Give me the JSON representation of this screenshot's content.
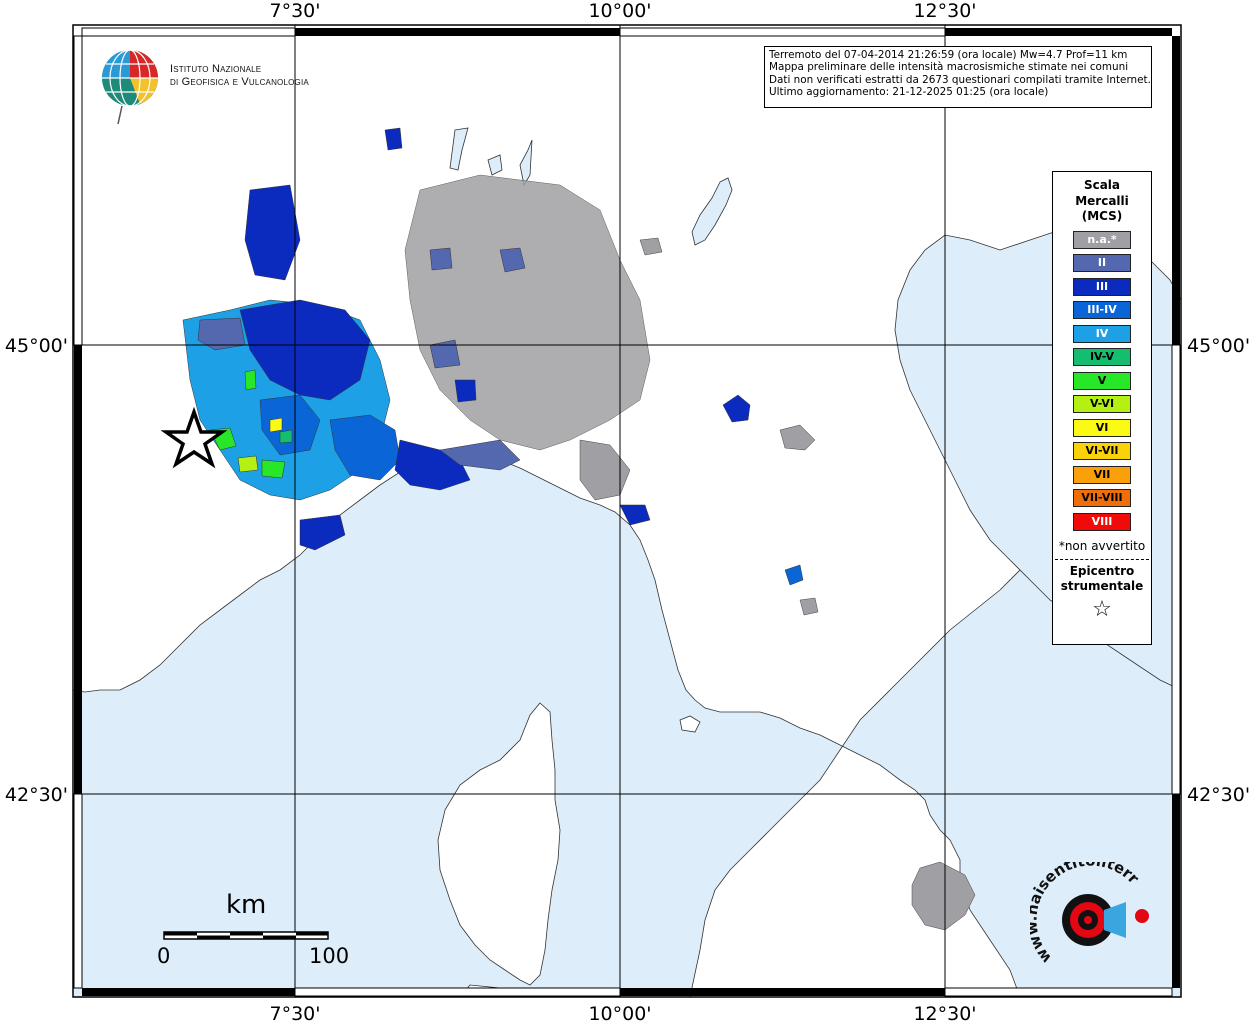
{
  "map": {
    "tick_labels": {
      "top": [
        "7°30'",
        "10°00'",
        "12°30'"
      ],
      "bottom": [
        "7°30'",
        "10°00'",
        "12°30'"
      ],
      "left": [
        "45°00'",
        "42°30'"
      ],
      "right": [
        "45°00'",
        "42°30'"
      ]
    },
    "colors": {
      "sea": "#ddeefa",
      "land": "#ffffff",
      "na": "#a0a0a4",
      "intensity_II": "#5468b0",
      "intensity_III": "#0a2bbd",
      "intensity_III_IV": "#0a66d6",
      "intensity_IV": "#1ea0e6",
      "intensity_IV_V": "#14be6e",
      "intensity_V": "#28e628",
      "intensity_V_VI": "#b4f014",
      "intensity_VI": "#fafa14",
      "intensity_VI_VII": "#fad20a",
      "intensity_VII": "#faa00a",
      "intensity_VII_VIII": "#f06e0a",
      "intensity_VIII": "#f00a0a"
    }
  },
  "info_box": {
    "line1": "Terremoto del 07-04-2014 21:26:59 (ora locale) Mw=4.7 Prof=11 km",
    "line2": "Mappa preliminare delle intensità macrosismiche stimate nei comuni",
    "line3": "Dati non verificati estratti da 2673 questionari compilati tramite Internet.",
    "line4": "Ultimo aggiornamento: 21-12-2025 01:25 (ora locale)"
  },
  "legend": {
    "title_line1": "Scala",
    "title_line2": "Mercalli",
    "title_line3": "(MCS)",
    "items": [
      {
        "label": "n.a.*",
        "color": "#a0a0a4",
        "text_color": "#ffffff"
      },
      {
        "label": "II",
        "color": "#5468b0",
        "text_color": "#ffffff"
      },
      {
        "label": "III",
        "color": "#0a2bbd",
        "text_color": "#ffffff"
      },
      {
        "label": "III-IV",
        "color": "#0a66d6",
        "text_color": "#ffffff"
      },
      {
        "label": "IV",
        "color": "#1ea0e6",
        "text_color": "#ffffff"
      },
      {
        "label": "IV-V",
        "color": "#14be6e",
        "text_color": "#000000"
      },
      {
        "label": "V",
        "color": "#28e628",
        "text_color": "#000000"
      },
      {
        "label": "V-VI",
        "color": "#b4f014",
        "text_color": "#000000"
      },
      {
        "label": "VI",
        "color": "#fafa14",
        "text_color": "#000000"
      },
      {
        "label": "VI-VII",
        "color": "#fad20a",
        "text_color": "#000000"
      },
      {
        "label": "VII",
        "color": "#faa00a",
        "text_color": "#000000"
      },
      {
        "label": "VII-VIII",
        "color": "#f06e0a",
        "text_color": "#000000"
      },
      {
        "label": "VIII",
        "color": "#f00a0a",
        "text_color": "#ffffff"
      }
    ],
    "note": "*non avvertito",
    "epicenter_line1": "Epicentro",
    "epicenter_line2": "strumentale",
    "epicenter_symbol": "☆"
  },
  "scale_bar": {
    "unit": "km",
    "start": "0",
    "end": "100"
  },
  "logos": {
    "ingv_line1": "Istituto Nazionale",
    "ingv_line2": "di Geofisica e Vulcanologia",
    "haisentito_text": "www.haisentitoilterremoto.it",
    "ingv_icon": "globe-icon",
    "haisentito_icon": "target-icon"
  }
}
